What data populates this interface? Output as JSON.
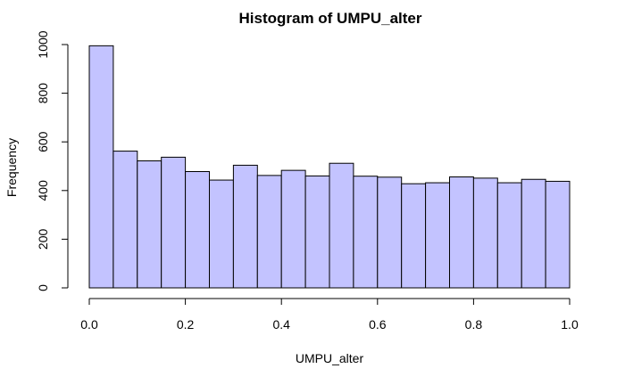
{
  "chart_data": {
    "type": "bar",
    "title": "Histogram of UMPU_alter",
    "xlabel": "UMPU_alter",
    "ylabel": "Frequency",
    "bin_edges": [
      0.0,
      0.05,
      0.1,
      0.15,
      0.2,
      0.25,
      0.3,
      0.35,
      0.4,
      0.45,
      0.5,
      0.55,
      0.6,
      0.65,
      0.7,
      0.75,
      0.8,
      0.85,
      0.9,
      0.95,
      1.0
    ],
    "values": [
      995,
      562,
      522,
      537,
      478,
      443,
      504,
      462,
      483,
      460,
      512,
      459,
      455,
      428,
      432,
      456,
      451,
      432,
      446,
      438
    ],
    "xlim": [
      0.0,
      1.0
    ],
    "ylim": [
      0,
      1000
    ],
    "x_ticks": [
      "0.0",
      "0.2",
      "0.4",
      "0.6",
      "0.8",
      "1.0"
    ],
    "y_ticks": [
      "0",
      "200",
      "400",
      "600",
      "800",
      "1000"
    ],
    "bar_color": "#c3c3ff",
    "grid": false,
    "legend": "none"
  }
}
